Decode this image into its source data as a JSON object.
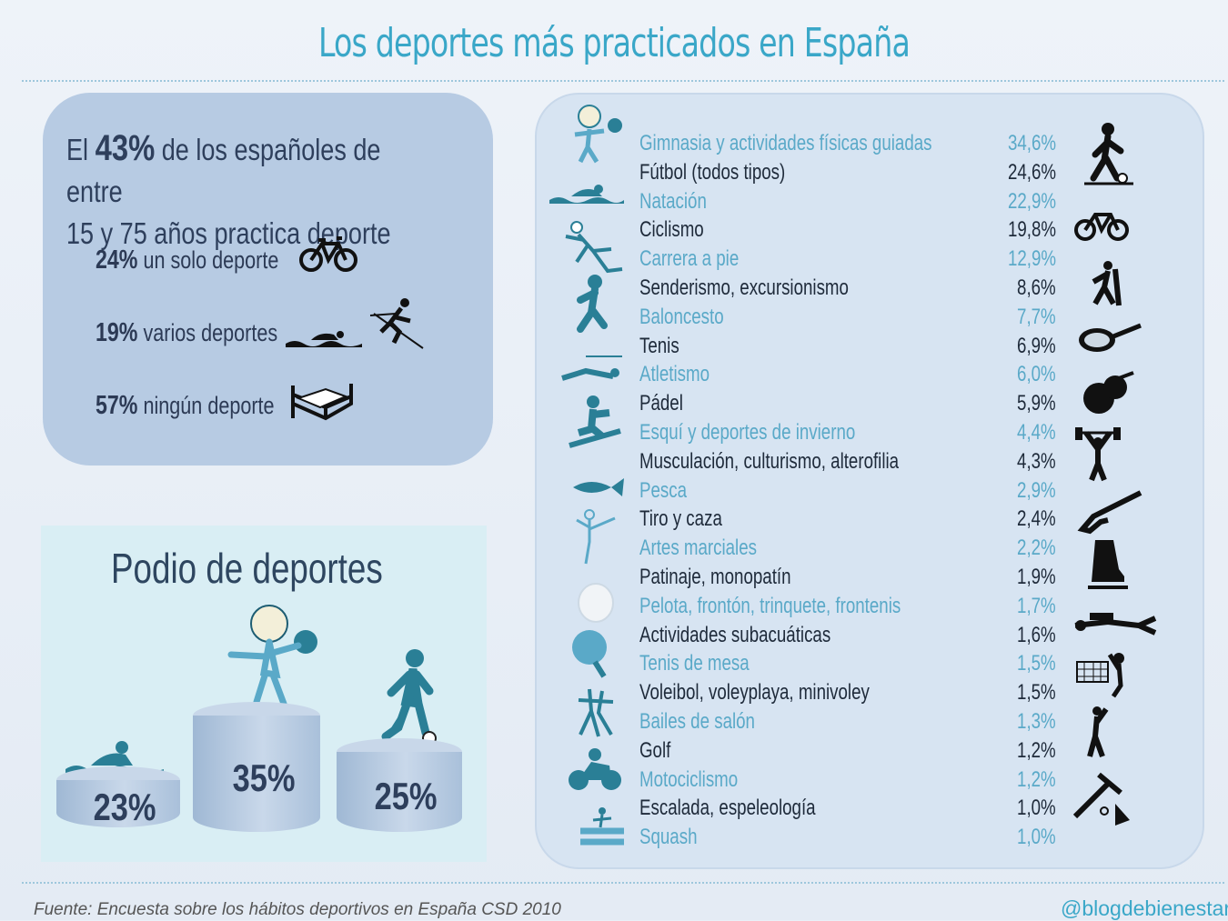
{
  "title": "Los deportes más practicados en España",
  "summary": {
    "headline_pre": "El",
    "headline_pct": "43%",
    "headline_line1": "de los españoles de entre",
    "headline_line2": "15 y 75 años practica deporte",
    "stats": [
      {
        "pct": "24%",
        "label": "un solo deporte",
        "icon": "bicycle-icon"
      },
      {
        "pct": "19%",
        "label": "varios deportes",
        "icon": "swimmer-icon"
      },
      {
        "pct": "57%",
        "label": "ningún deporte",
        "icon": "bed-icon"
      }
    ]
  },
  "podium": {
    "title": "Podio de deportes",
    "places": [
      {
        "label": "23%",
        "icon": "swimmer-icon"
      },
      {
        "label": "35%",
        "icon": "gymnast-icon"
      },
      {
        "label": "25%",
        "icon": "soccer-player-icon"
      }
    ]
  },
  "chart_data": {
    "type": "table",
    "categories": [
      "Gimnasia y actividades físicas guiadas",
      "Fútbol (todos tipos)",
      "Natación",
      "Ciclismo",
      "Carrera a pie",
      "Senderismo, excursionismo",
      "Baloncesto",
      "Tenis",
      "Atletismo",
      "Pádel",
      "Esquí y deportes de invierno",
      "Musculación, culturismo, alterofilia",
      "Pesca",
      "Tiro y caza",
      "Artes marciales",
      "Patinaje, monopatín",
      "Pelota, frontón, trinquete, frontenis",
      "Actividades subacuáticas",
      "Tenis de mesa",
      "Voleibol, voleyplaya, minivoley",
      "Bailes de salón",
      "Golf",
      "Motociclismo",
      "Escalada, espeleología",
      "Squash"
    ],
    "labels": [
      "34,6%",
      "24,6%",
      "22,9%",
      "19,8%",
      "12,9%",
      "8,6%",
      "7,7%",
      "6,9%",
      "6,0%",
      "5,9%",
      "4,4%",
      "4,3%",
      "2,9%",
      "2,4%",
      "2,2%",
      "1,9%",
      "1,7%",
      "1,6%",
      "1,5%",
      "1,5%",
      "1,3%",
      "1,2%",
      "1,2%",
      "1,0%",
      "1,0%"
    ],
    "values": [
      34.6,
      24.6,
      22.9,
      19.8,
      12.9,
      8.6,
      7.7,
      6.9,
      6.0,
      5.9,
      4.4,
      4.3,
      2.9,
      2.4,
      2.2,
      1.9,
      1.7,
      1.6,
      1.5,
      1.5,
      1.3,
      1.2,
      1.2,
      1.0,
      1.0
    ]
  },
  "colors": {
    "accent": "#3aa7c8",
    "dark": "#1e2a3a",
    "light": "#5aa9c8"
  },
  "footer": {
    "source": "Fuente:  Encuesta sobre los hábitos deportivos en España CSD 2010",
    "brand": "@blogdebienestar"
  }
}
